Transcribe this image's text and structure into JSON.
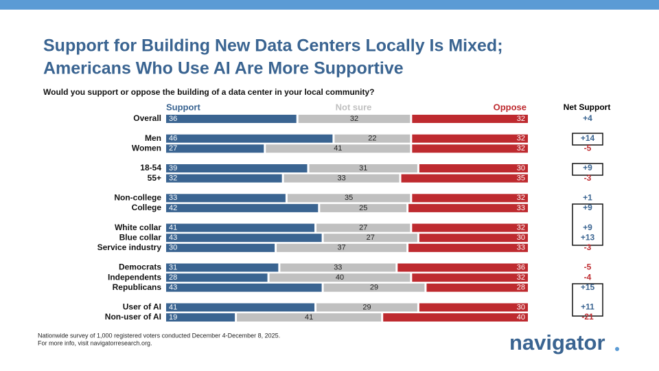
{
  "chart_data": {
    "type": "stacked-bar-horizontal",
    "title": [
      "Support for Building New Data Centers Locally Is Mixed;",
      "Americans Who Use AI Are More Supportive"
    ],
    "subtitle": "Would you support or oppose the building of a data center in your local community?",
    "categories": [
      "Overall",
      "Men",
      "Women",
      "18-54",
      "55+",
      "Non-college",
      "College",
      "White collar",
      "Blue collar",
      "Service industry",
      "Democrats",
      "Independents",
      "Republicans",
      "User of AI",
      "Non-user of AI"
    ],
    "series": [
      {
        "name": "Support",
        "color": "#3a6491",
        "values": [
          36,
          46,
          27,
          39,
          32,
          33,
          42,
          41,
          43,
          30,
          31,
          28,
          43,
          41,
          19
        ]
      },
      {
        "name": "Not sure",
        "color": "#c0c0c0",
        "values": [
          32,
          22,
          41,
          31,
          33,
          35,
          25,
          27,
          27,
          37,
          33,
          40,
          29,
          29,
          41
        ]
      },
      {
        "name": "Oppose",
        "color": "#be2a2f",
        "values": [
          32,
          32,
          32,
          30,
          35,
          32,
          33,
          32,
          30,
          33,
          36,
          32,
          28,
          30,
          40
        ]
      }
    ],
    "xlim": [
      0,
      100
    ],
    "net_support": {
      "title": "Net Support",
      "values": [
        4,
        14,
        -5,
        9,
        -3,
        1,
        9,
        9,
        13,
        -3,
        -5,
        -4,
        15,
        11,
        -21
      ],
      "value_labels": [
        "+4",
        "+14",
        "-5",
        "+9",
        "-3",
        "+1",
        "+9",
        "+9",
        "+13",
        "-3",
        "-5",
        "-4",
        "+15",
        "+11",
        "-21"
      ]
    },
    "notes": [
      "Nationwide survey of 1,000 registered voters conducted December 4-December 8, 2025.",
      "For more info, visit navigatorresearch.org."
    ],
    "brand": "navigator"
  }
}
